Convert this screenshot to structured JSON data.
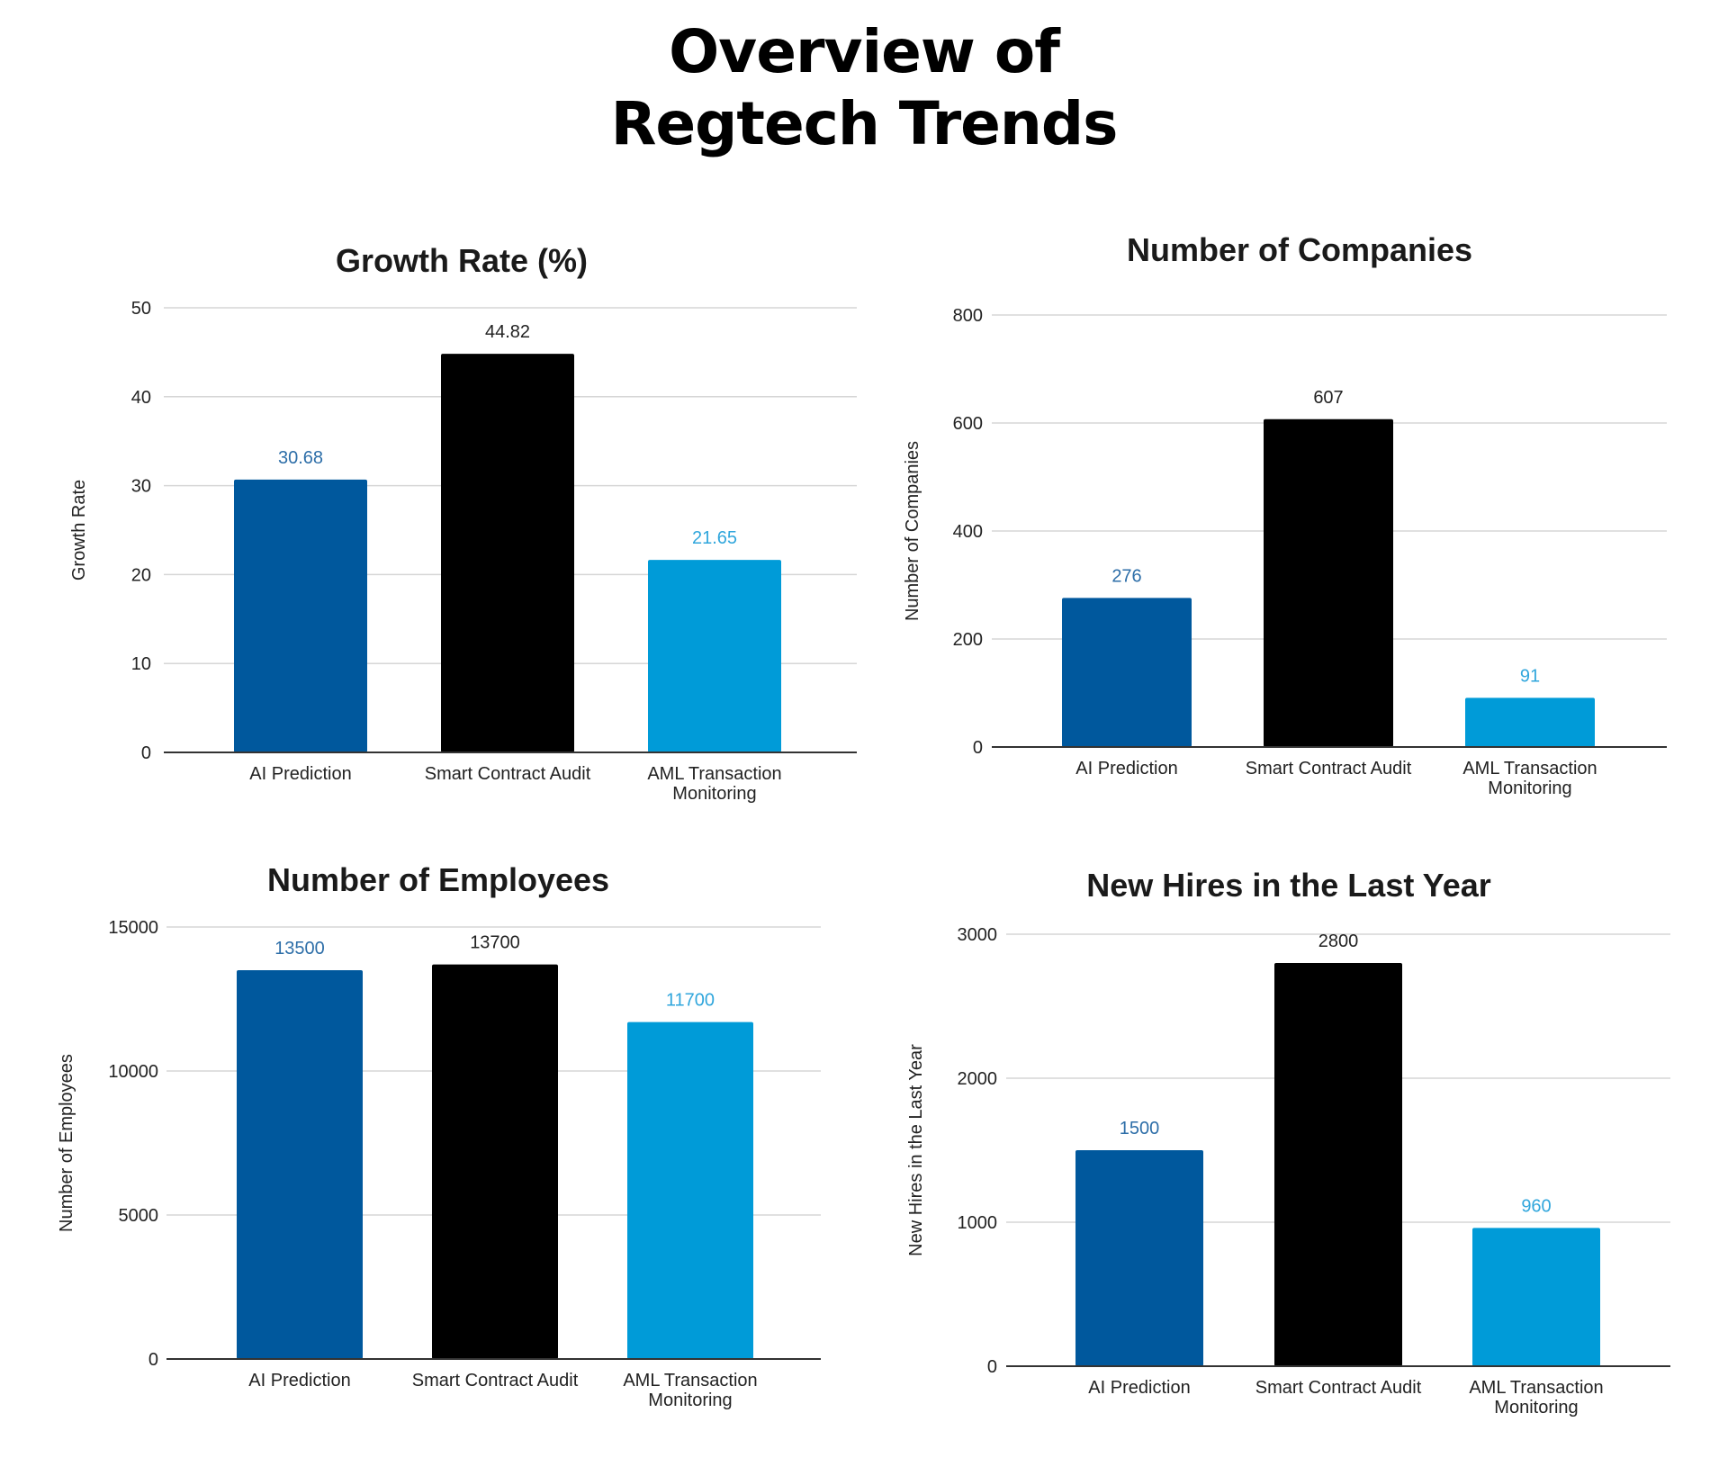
{
  "page": {
    "title_line1": "Overview of",
    "title_line2": "Regtech Trends"
  },
  "colors": {
    "series": [
      "#00589d",
      "#000000",
      "#009bd8"
    ],
    "labels": [
      "#2d6ea8",
      "#222222",
      "#30a6dc"
    ]
  },
  "chart_data": [
    {
      "type": "bar",
      "title": "Growth Rate (%)",
      "xlabel": "",
      "ylabel": "Growth Rate",
      "categories": [
        "AI Prediction",
        "Smart Contract Audit",
        "AML Transaction Monitoring"
      ],
      "values": [
        30.68,
        44.82,
        21.65
      ],
      "value_labels": [
        "30.68",
        "44.82",
        "21.65"
      ],
      "ylim": [
        0,
        50
      ],
      "yticks": [
        "0",
        "10",
        "20",
        "30",
        "40",
        "50"
      ],
      "grid": true,
      "legend": "none"
    },
    {
      "type": "bar",
      "title": "Number of Companies",
      "xlabel": "",
      "ylabel": "Number of Companies",
      "categories": [
        "AI Prediction",
        "Smart Contract Audit",
        "AML Transaction Monitoring"
      ],
      "values": [
        276,
        607,
        91
      ],
      "value_labels": [
        "276",
        "607",
        "91"
      ],
      "ylim": [
        0,
        800
      ],
      "yticks": [
        "0",
        "200",
        "400",
        "600",
        "800"
      ],
      "grid": true,
      "legend": "none"
    },
    {
      "type": "bar",
      "title": "Number of Employees",
      "xlabel": "",
      "ylabel": "Number of Employees",
      "categories": [
        "AI Prediction",
        "Smart Contract Audit",
        "AML Transaction Monitoring"
      ],
      "values": [
        13500,
        13700,
        11700
      ],
      "value_labels": [
        "13500",
        "13700",
        "11700"
      ],
      "ylim": [
        0,
        15000
      ],
      "yticks": [
        "0",
        "5000",
        "10000",
        "15000"
      ],
      "grid": true,
      "legend": "none"
    },
    {
      "type": "bar",
      "title": "New Hires in the Last Year",
      "xlabel": "",
      "ylabel": "New Hires in the Last Year",
      "categories": [
        "AI Prediction",
        "Smart Contract Audit",
        "AML Transaction Monitoring"
      ],
      "values": [
        1500,
        2800,
        960
      ],
      "value_labels": [
        "1500",
        "2800",
        "960"
      ],
      "ylim": [
        0,
        3000
      ],
      "yticks": [
        "0",
        "1000",
        "2000",
        "3000"
      ],
      "grid": true,
      "legend": "none"
    }
  ]
}
